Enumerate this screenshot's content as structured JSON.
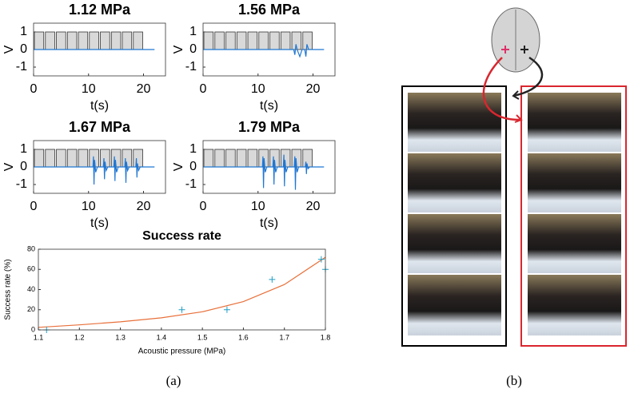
{
  "chart_data": [
    {
      "type": "pulse",
      "title": "1.12 MPa",
      "xlabel": "t(s)",
      "ylabel": "V",
      "xlim": [
        0,
        24
      ],
      "ylim": [
        -1.5,
        1.5
      ],
      "xticks": [
        0,
        10,
        20
      ],
      "yticks": [
        -1,
        0,
        1
      ],
      "x": [
        1,
        3,
        5,
        7,
        9,
        11,
        13,
        15,
        17,
        19
      ],
      "values": [
        1,
        1,
        1,
        1,
        1,
        1,
        1,
        1,
        1,
        1
      ],
      "color": "#d9d9d9",
      "trace": {
        "color": "#1f77d4",
        "x": [
          0,
          22
        ],
        "values": [
          0,
          0
        ]
      }
    },
    {
      "type": "pulse",
      "title": "1.56 MPa",
      "xlabel": "t(s)",
      "ylabel": "V",
      "xlim": [
        0,
        24
      ],
      "ylim": [
        -1.5,
        1.5
      ],
      "xticks": [
        0,
        10,
        20
      ],
      "yticks": [
        -1,
        0,
        1
      ],
      "x": [
        1,
        3,
        5,
        7,
        9,
        11,
        13,
        15,
        17,
        19
      ],
      "values": [
        1,
        1,
        1,
        1,
        1,
        1,
        1,
        1,
        1,
        1
      ],
      "color": "#d9d9d9",
      "trace": {
        "color": "#1f77d4",
        "x": [
          0,
          16.5,
          16.7,
          16.9,
          17.1,
          17.6,
          17.8,
          18,
          18.5,
          18.7,
          18.9,
          19.2,
          22
        ],
        "values": [
          0,
          0,
          -0.3,
          0.3,
          0,
          -0.4,
          -0.2,
          0,
          0,
          -0.4,
          0.3,
          0,
          0
        ]
      }
    },
    {
      "type": "pulse",
      "title": "1.67 MPa",
      "xlabel": "t(s)",
      "ylabel": "V",
      "xlim": [
        0,
        24
      ],
      "ylim": [
        -1.5,
        1.5
      ],
      "xticks": [
        0,
        10,
        20
      ],
      "yticks": [
        -1,
        0,
        1
      ],
      "x": [
        1,
        3,
        5,
        7,
        9,
        11,
        13,
        15,
        17,
        19
      ],
      "values": [
        1,
        1,
        1,
        1,
        1,
        1,
        1,
        1,
        1,
        1
      ],
      "color": "#d9d9d9",
      "trace": {
        "color": "#1f77d4",
        "x": [
          0,
          10.8,
          10.9,
          11,
          11.1,
          11.3,
          11.6,
          12.7,
          12.8,
          12.9,
          13,
          13.2,
          13.5,
          14.6,
          14.7,
          14.8,
          14.9,
          15.1,
          15.4,
          16.6,
          16.7,
          16.8,
          16.9,
          17.1,
          17.4,
          18.6,
          18.7,
          18.8,
          18.9,
          19.1,
          19.4,
          22
        ],
        "values": [
          0,
          0,
          0.6,
          -1,
          0.4,
          -0.3,
          0,
          0,
          0.5,
          -0.7,
          0.3,
          -0.2,
          0,
          0,
          0.6,
          -0.8,
          0.4,
          -0.3,
          0,
          0,
          0.5,
          -0.9,
          0.3,
          -0.2,
          0,
          0,
          0.5,
          -0.6,
          0.2,
          -0.2,
          0,
          0
        ]
      }
    },
    {
      "type": "pulse",
      "title": "1.79 MPa",
      "xlabel": "t(s)",
      "ylabel": "V",
      "xlim": [
        0,
        24
      ],
      "ylim": [
        -1.5,
        1.5
      ],
      "xticks": [
        0,
        10,
        20
      ],
      "yticks": [
        -1,
        0,
        1
      ],
      "x": [
        1,
        3,
        5,
        7,
        9,
        11,
        13,
        15,
        17,
        19
      ],
      "values": [
        1,
        1,
        1,
        1,
        1,
        1,
        1,
        1,
        1,
        1
      ],
      "color": "#d9d9d9",
      "trace": {
        "color": "#1f77d4",
        "x": [
          0,
          10.8,
          10.9,
          11,
          11.1,
          11.3,
          11.6,
          12.7,
          12.8,
          12.9,
          13,
          13.2,
          13.5,
          14.6,
          14.7,
          14.8,
          14.9,
          15.1,
          15.4,
          16.6,
          16.7,
          16.8,
          16.9,
          17.1,
          17.4,
          18.6,
          18.7,
          18.8,
          18.9,
          19.1,
          19.4,
          22
        ],
        "values": [
          0,
          0,
          0.6,
          -1.2,
          0.5,
          -0.3,
          0,
          0,
          0.6,
          -1,
          0.4,
          -0.3,
          0,
          0,
          0.7,
          -1.1,
          0.4,
          -0.3,
          0,
          0,
          0.6,
          -1.3,
          0.5,
          -0.3,
          0,
          0,
          0.3,
          -0.4,
          0.2,
          -0.1,
          0,
          0
        ]
      }
    },
    {
      "type": "scatter",
      "title": "Success rate",
      "xlabel": "Acoustic pressure (MPa)",
      "ylabel": "Success rate (%)",
      "xlim": [
        1.1,
        1.8
      ],
      "ylim": [
        0,
        80
      ],
      "xticks": [
        1.1,
        1.2,
        1.3,
        1.4,
        1.5,
        1.6,
        1.7,
        1.8
      ],
      "yticks": [
        0,
        20,
        40,
        60,
        80
      ],
      "x": [
        1.12,
        1.45,
        1.56,
        1.67,
        1.79,
        1.8
      ],
      "values": [
        0,
        20,
        20,
        50,
        70,
        60
      ],
      "color": "#1f9ec4",
      "fit": {
        "color": "#e8703a",
        "x": [
          1.1,
          1.2,
          1.3,
          1.4,
          1.5,
          1.6,
          1.7,
          1.8
        ],
        "values": [
          2.5,
          5,
          8,
          12,
          18,
          28,
          45,
          72
        ]
      }
    }
  ],
  "captions": [
    "(a)",
    "(b)"
  ]
}
